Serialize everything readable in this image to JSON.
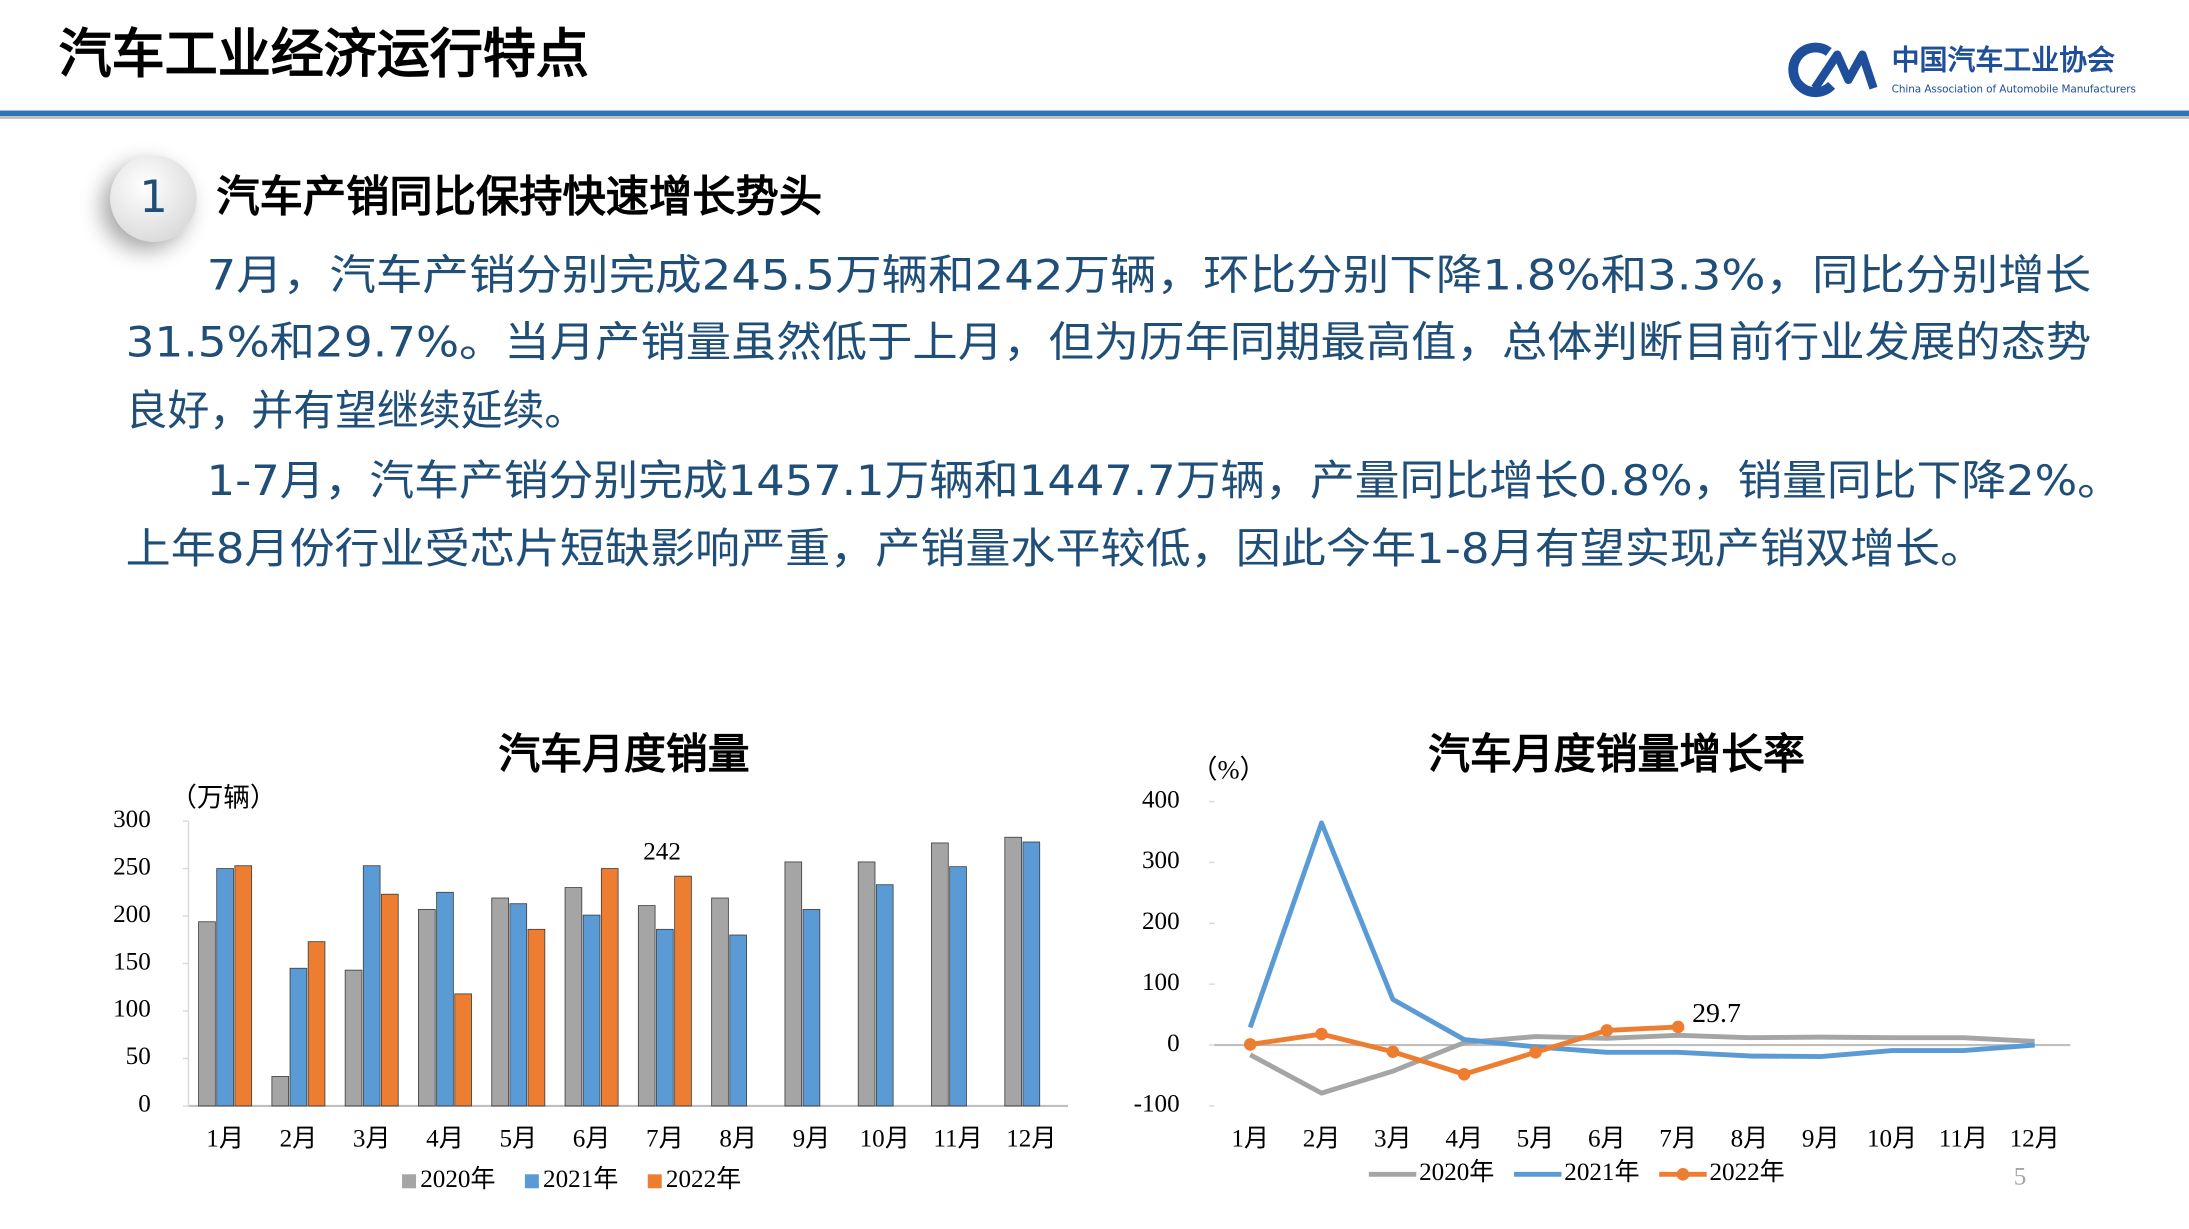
{
  "header": {
    "title": "汽车工业经济运行特点",
    "logo_cn": "中国汽车工业协会",
    "logo_en": "China Association of Automobile Manufacturers"
  },
  "section": {
    "number": "1",
    "heading": "汽车产销同比保持快速增长势头"
  },
  "paragraphs": [
    [
      "7月，汽车产销分别完成245.5万辆和242万辆，环比分别下降1.8%和3.3%，同比分别增长",
      "31.5%和29.7%。当月产销量虽然低于上月，但为历年同期最高值，总体判断目前行业发展的态势",
      "良好，并有望继续延续。"
    ],
    [
      "1-7月，汽车产销分别完成1457.1万辆和1447.7万辆，产量同比增长0.8%，销量同比下降2%。",
      "上年8月份行业受芯片短缺影响严重，产销量水平较低，因此今年1-8月有望实现产销双增长。"
    ]
  ],
  "chart_data": [
    {
      "type": "bar",
      "title": "汽车月度销量",
      "y_label": "（万辆）",
      "categories": [
        "1月",
        "2月",
        "3月",
        "4月",
        "5月",
        "6月",
        "7月",
        "8月",
        "9月",
        "10月",
        "11月",
        "12月"
      ],
      "series": [
        {
          "name": "2020年",
          "color": "#a5a5a5",
          "values": [
            194,
            31,
            143,
            207,
            219,
            230,
            211,
            219,
            257,
            257,
            277,
            283
          ]
        },
        {
          "name": "2021年",
          "color": "#5b9bd5",
          "values": [
            250,
            145,
            253,
            225,
            213,
            201,
            186,
            180,
            207,
            233,
            252,
            278
          ]
        },
        {
          "name": "2022年",
          "color": "#ed7d31",
          "values": [
            253,
            173,
            223,
            118,
            186,
            250,
            242,
            null,
            null,
            null,
            null,
            null
          ],
          "value_labels": [
            null,
            null,
            null,
            null,
            null,
            null,
            "242",
            null,
            null,
            null,
            null,
            null
          ]
        }
      ],
      "ylim": [
        0,
        300
      ],
      "yticks": [
        0,
        50,
        100,
        150,
        200,
        250,
        300
      ],
      "legend": "bottom"
    },
    {
      "type": "line",
      "title": "汽车月度销量增长率",
      "y_label": "（%）",
      "categories": [
        "1月",
        "2月",
        "3月",
        "4月",
        "5月",
        "6月",
        "7月",
        "8月",
        "9月",
        "10月",
        "11月",
        "12月"
      ],
      "series": [
        {
          "name": "2020年",
          "color": "#a5a5a5",
          "marker": false,
          "values": [
            -16,
            -79,
            -43,
            4,
            14,
            11,
            16,
            12,
            13,
            12,
            12,
            6
          ]
        },
        {
          "name": "2021年",
          "color": "#5b9bd5",
          "marker": false,
          "values": [
            29,
            365,
            75,
            9,
            -3,
            -12,
            -12,
            -18,
            -19,
            -9,
            -9,
            0
          ]
        },
        {
          "name": "2022年",
          "color": "#ed7d31",
          "marker": true,
          "values": [
            1,
            18,
            -11,
            -48,
            -12,
            24,
            29.7,
            null,
            null,
            null,
            null,
            null
          ],
          "value_labels": [
            null,
            null,
            null,
            null,
            null,
            null,
            "29.7",
            null,
            null,
            null,
            null,
            null
          ]
        }
      ],
      "ylim": [
        -100,
        400
      ],
      "yticks": [
        -100,
        0,
        100,
        200,
        300,
        400
      ],
      "legend": "bottom"
    }
  ],
  "page_number": "5"
}
